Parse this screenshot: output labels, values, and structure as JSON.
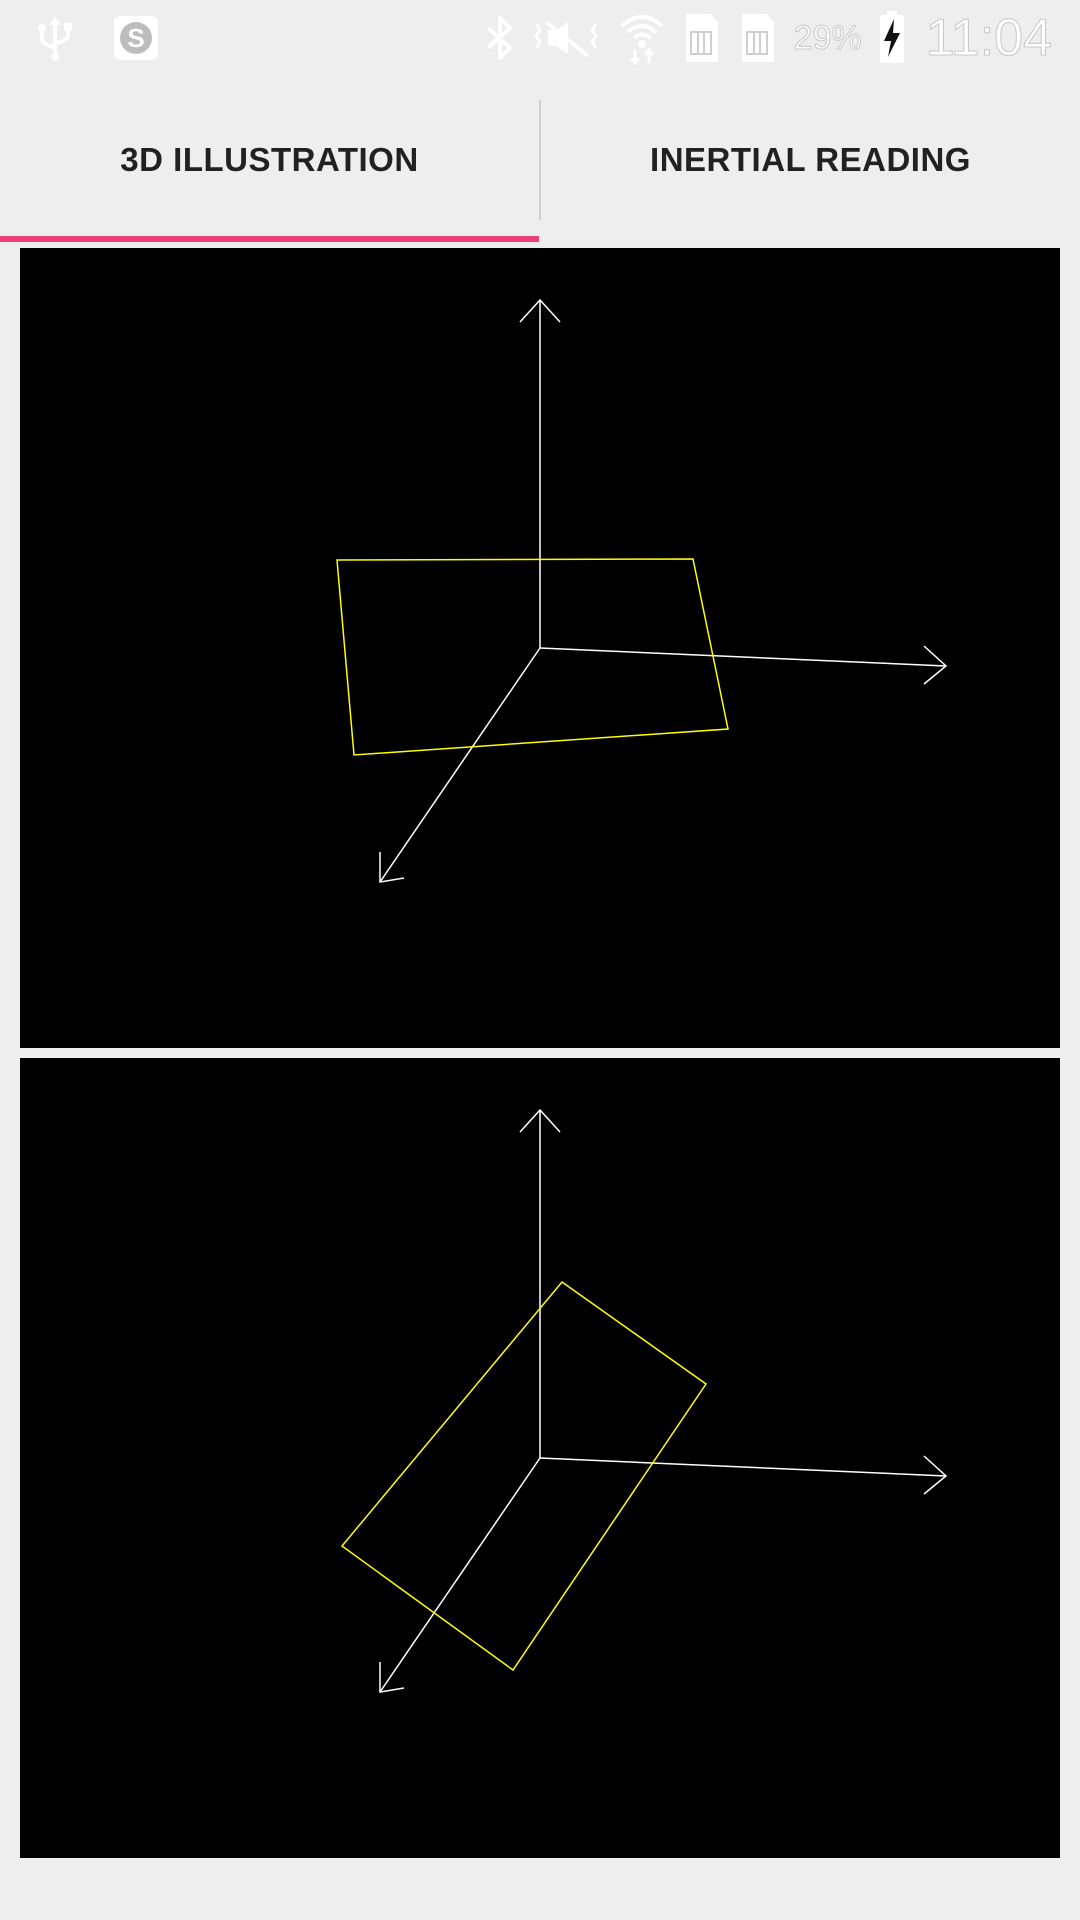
{
  "status_bar": {
    "icons_left": [
      "usb-icon",
      "skype-icon"
    ],
    "icons_right": [
      "bluetooth-icon",
      "vibrate-mute-icon",
      "wifi-icon",
      "sim1-icon",
      "sim2-icon",
      "battery-charging-icon"
    ],
    "battery_percent": "29%",
    "time": "11:04"
  },
  "tabs": [
    {
      "label": "3D ILLUSTRATION",
      "selected": true
    },
    {
      "label": "INERTIAL READING",
      "selected": false
    }
  ],
  "colors": {
    "accent": "#ec407a",
    "axis": "#ffffff",
    "plane": "#ffff00",
    "canvas_background": "#000000"
  }
}
